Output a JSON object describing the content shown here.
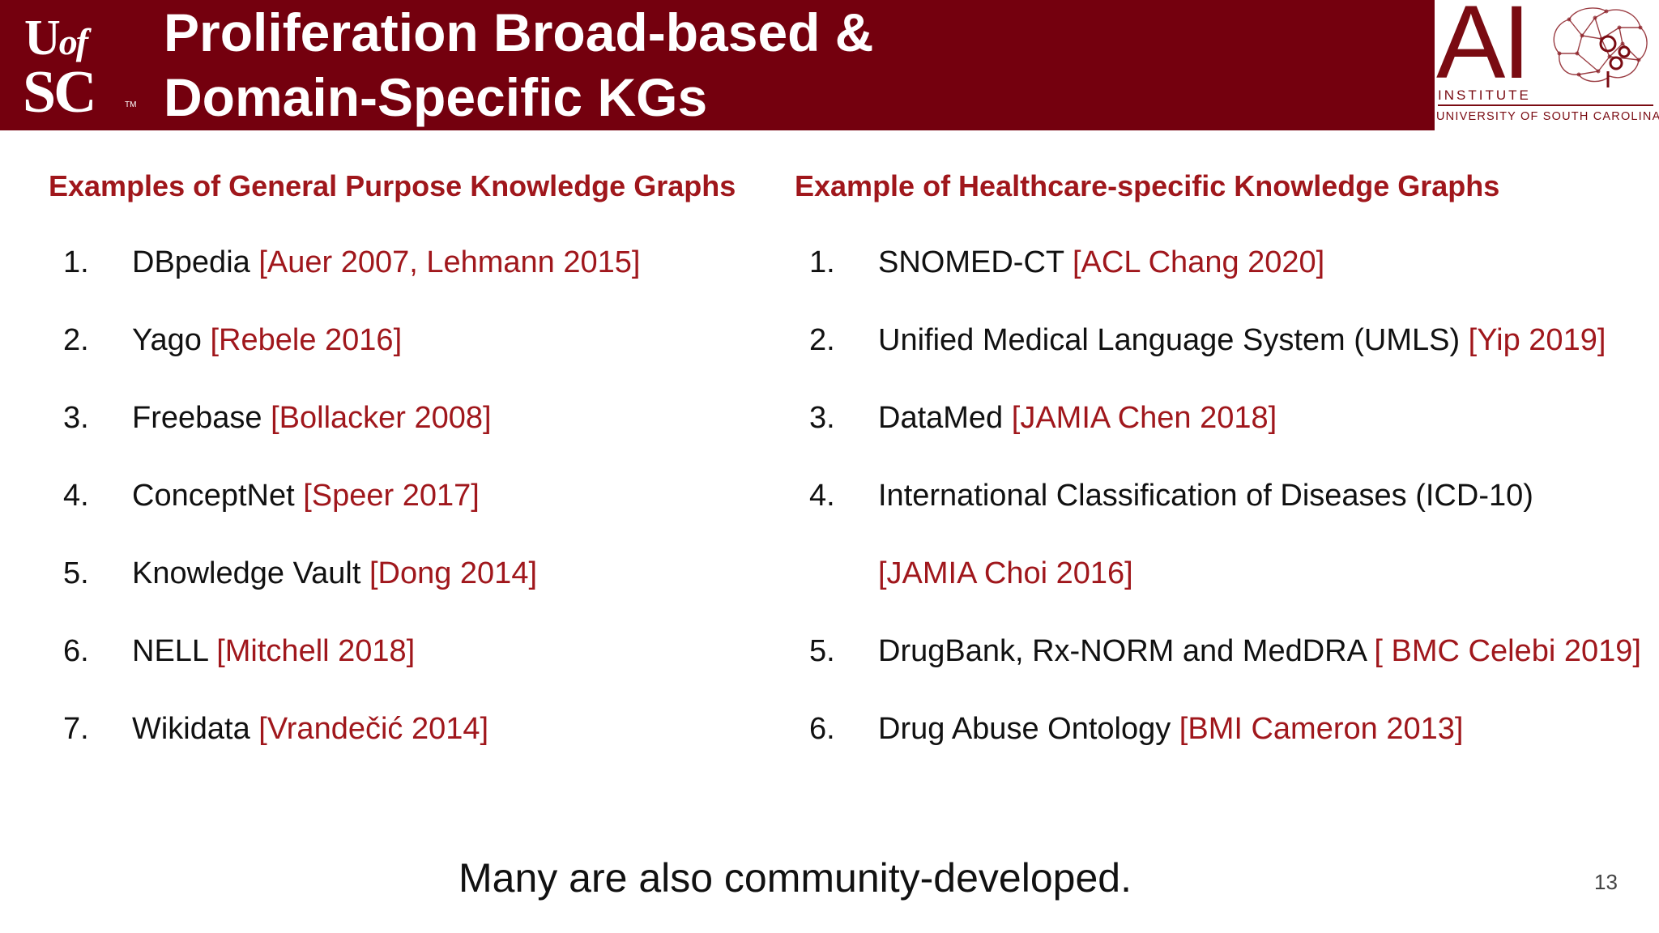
{
  "header": {
    "logo": {
      "line1_u": "U",
      "line1_of": "of",
      "line2": "SC",
      "tm": "TM"
    },
    "title_line1": "Proliferation Broad-based &",
    "title_line2": "Domain-Specific KGs",
    "ai_logo": {
      "letters": "AI",
      "institute": "INSTITUTE",
      "university": "UNIVERSITY OF SOUTH CAROLINA"
    }
  },
  "colors": {
    "brand": "#74000e",
    "accent": "#a0171c"
  },
  "left": {
    "heading": "Examples of General Purpose Knowledge Graphs",
    "items": [
      {
        "num": "1.",
        "name": "DBpedia",
        "cite": "[Auer 2007, Lehmann 2015]"
      },
      {
        "num": "2.",
        "name": "Yago",
        "cite": "[Rebele 2016]"
      },
      {
        "num": "3.",
        "name": "Freebase",
        "cite": "[Bollacker 2008]"
      },
      {
        "num": "4.",
        "name": "ConceptNet",
        "cite": "[Speer 2017]"
      },
      {
        "num": "5.",
        "name": "Knowledge Vault",
        "cite": "[Dong 2014]"
      },
      {
        "num": "6.",
        "name": "NELL",
        "cite": "[Mitchell 2018]"
      },
      {
        "num": "7.",
        "name": "Wikidata",
        "cite": "[Vrandečić 2014]"
      }
    ]
  },
  "right": {
    "heading": "Example of Healthcare-specific Knowledge Graphs",
    "items": [
      {
        "num": "1.",
        "name": "SNOMED-CT",
        "cite": "[ACL Chang 2020]"
      },
      {
        "num": "2.",
        "name": "Unified Medical Language System (UMLS)",
        "cite": "[Yip 2019]"
      },
      {
        "num": "3.",
        "name": "DataMed",
        "cite": "[JAMIA Chen 2018]"
      },
      {
        "num": "4.",
        "name": "International Classification of Diseases (ICD-10)",
        "cite": ""
      },
      {
        "num": "",
        "name": "",
        "cite": "[JAMIA Choi 2016]"
      },
      {
        "num": "5.",
        "name": "DrugBank, Rx-NORM and MedDRA",
        "cite": "[ BMC Celebi 2019]"
      },
      {
        "num": "6.",
        "name": "Drug Abuse Ontology",
        "cite": "[BMI Cameron 2013]"
      }
    ]
  },
  "footer": {
    "note": "Many are also community-developed.",
    "page_number": "13"
  }
}
